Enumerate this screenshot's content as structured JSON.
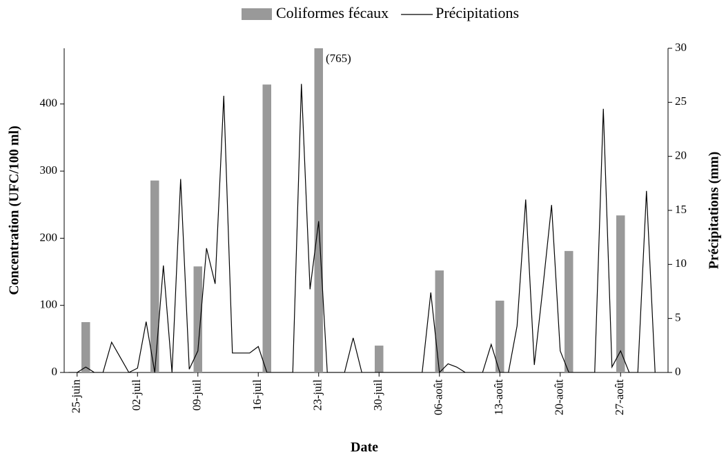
{
  "chart_data": {
    "type": "bar",
    "x_label": "Date",
    "y_label": "Concentration (UFC/100 ml)",
    "y2_label": "Précipitations (mm)",
    "categories": [
      null,
      "25-juin",
      null,
      null,
      null,
      null,
      null,
      null,
      "02-juil",
      null,
      null,
      null,
      null,
      null,
      null,
      "09-juil",
      null,
      null,
      null,
      null,
      null,
      null,
      "16-juil",
      null,
      null,
      null,
      null,
      null,
      null,
      "23-juil",
      null,
      null,
      null,
      null,
      null,
      null,
      "30-juil",
      null,
      null,
      null,
      null,
      null,
      null,
      "06-août",
      null,
      null,
      null,
      null,
      null,
      null,
      "13-août",
      null,
      null,
      null,
      null,
      null,
      null,
      "20-août",
      null,
      null,
      null,
      null,
      null,
      null,
      "27-août",
      null,
      null,
      null,
      null,
      null
    ],
    "series": [
      {
        "name": "Coliformes fécaux",
        "type": "bar",
        "color": "#999999",
        "values": [
          null,
          null,
          75,
          null,
          null,
          null,
          null,
          null,
          null,
          null,
          286,
          null,
          null,
          null,
          null,
          158,
          null,
          null,
          null,
          null,
          null,
          null,
          null,
          429,
          null,
          null,
          null,
          null,
          null,
          765,
          null,
          null,
          null,
          null,
          null,
          null,
          40,
          null,
          null,
          null,
          null,
          null,
          null,
          152,
          null,
          null,
          null,
          null,
          null,
          null,
          107,
          null,
          null,
          null,
          null,
          null,
          null,
          null,
          181,
          null,
          null,
          null,
          null,
          null,
          234,
          null,
          null,
          null,
          null,
          null
        ],
        "value_labels": [
          null,
          null,
          null,
          null,
          null,
          null,
          null,
          null,
          null,
          null,
          null,
          null,
          null,
          null,
          null,
          null,
          null,
          null,
          null,
          null,
          null,
          null,
          null,
          null,
          null,
          null,
          null,
          null,
          null,
          "(765)",
          null,
          null,
          null,
          null,
          null,
          null,
          null,
          null,
          null,
          null,
          null,
          null,
          null,
          null,
          null,
          null,
          null,
          null,
          null,
          null,
          null,
          null,
          null,
          null,
          null,
          null,
          null,
          null,
          null,
          null,
          null,
          null,
          null,
          null,
          null,
          null,
          null,
          null,
          null,
          null
        ]
      },
      {
        "name": "Précipitations",
        "type": "line",
        "color": "#000000",
        "axis": "y2",
        "values": [
          0,
          0,
          0.5,
          0,
          0,
          2.8,
          1.4,
          0,
          0.4,
          4.7,
          0,
          9.9,
          0,
          17.9,
          0.3,
          2,
          11.5,
          8.2,
          25.6,
          1.8,
          1.8,
          1.8,
          2.4,
          0,
          0,
          0,
          0,
          26.7,
          7.7,
          14,
          0,
          0,
          0,
          3.2,
          0,
          0,
          0,
          0,
          0,
          0,
          0,
          0,
          7.4,
          0,
          0.8,
          0.5,
          0,
          0,
          0,
          2.6,
          0,
          0,
          4.3,
          16,
          0.7,
          7.9,
          15.5,
          2,
          0,
          0,
          0,
          0,
          24.4,
          0.5,
          2,
          0,
          0,
          16.8,
          0,
          null
        ]
      }
    ],
    "ylim": [
      0,
      483
    ],
    "yticks": [
      0,
      100,
      200,
      300,
      400
    ],
    "y2lim": [
      0,
      30
    ],
    "y2ticks": [
      0,
      5,
      10,
      15,
      20,
      25,
      30
    ]
  }
}
